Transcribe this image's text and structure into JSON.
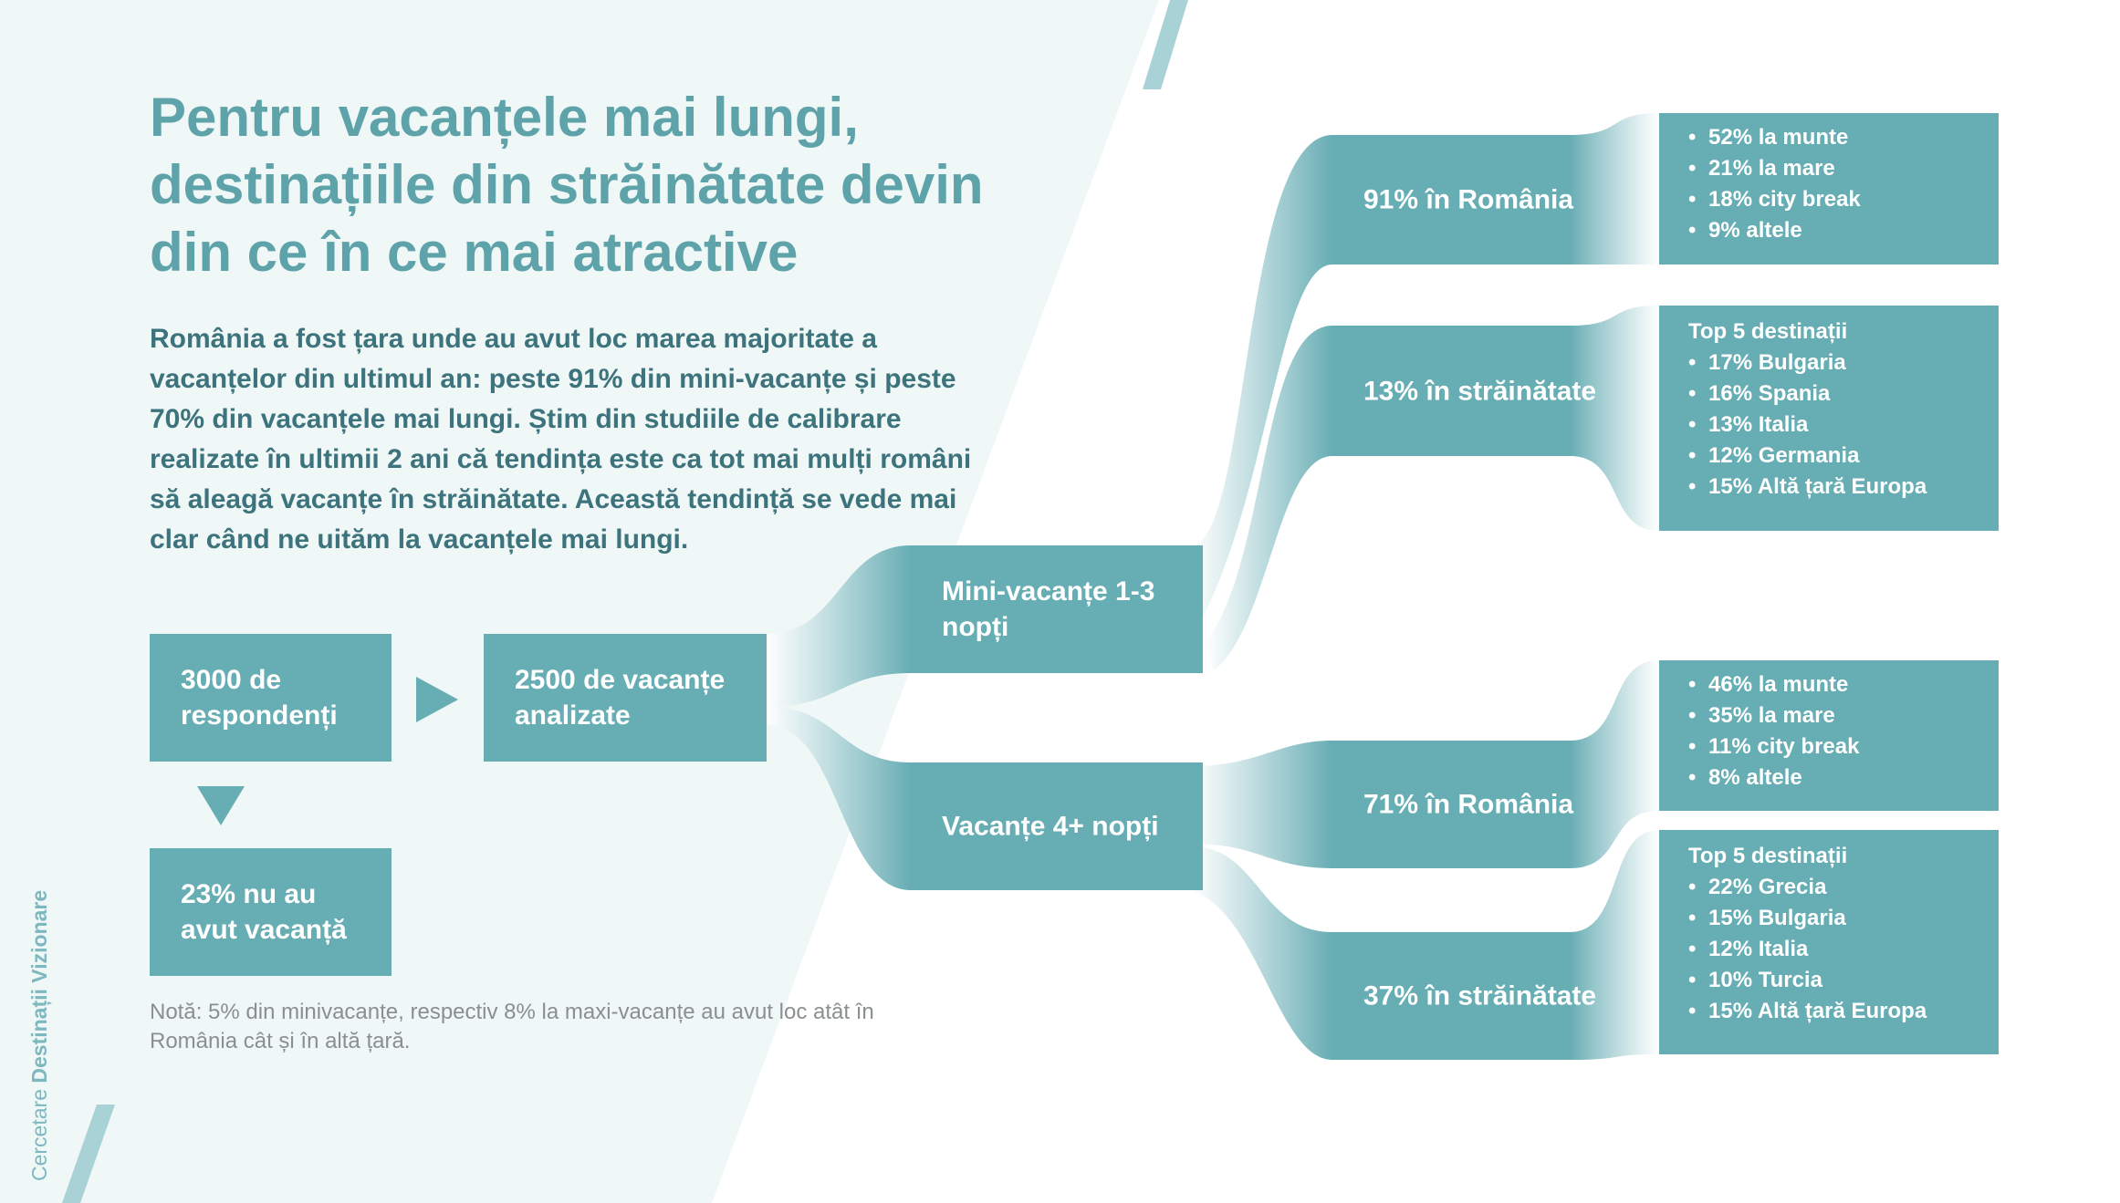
{
  "title_lines": [
    "Pentru vacanțele mai lungi,",
    "destinațiile din străinătate devin",
    "din ce în ce mai atractive"
  ],
  "intro_lines": [
    "România a fost țara unde au avut loc marea majoritate a",
    "vacanțelor din ultimul an: peste 91% din mini-vacanțe și peste",
    "70% din vacanțele mai lungi. Știm din studiile de calibrare",
    "realizate în ultimii 2 ani că tendința este ca tot mai mulți români",
    "să aleagă vacanțe în străinătate. Această tendință se vede mai",
    "clar când ne uităm la vacanțele mai lungi."
  ],
  "nodes": {
    "respondents": [
      "3000 de",
      "respondenți"
    ],
    "analyzed": [
      "2500 de vacanțe",
      "analizate"
    ],
    "no_vacation": [
      "23% nu au",
      "avut vacanță"
    ],
    "mini": [
      "Mini-vacanțe 1-3",
      "nopți"
    ],
    "long": [
      "Vacanțe 4+ nopți"
    ],
    "mini_ro": "91% în România",
    "mini_abroad": "13% în străinătate",
    "long_ro": "71% în România",
    "long_abroad": "37% în străinătate"
  },
  "details": {
    "mini_ro": [
      "52% la munte",
      "21% la mare",
      "18% city break",
      "9% altele"
    ],
    "mini_abroad_header": "Top 5 destinații",
    "mini_abroad": [
      "17% Bulgaria",
      "16% Spania",
      "13% Italia",
      "12% Germania",
      "15% Altă țară Europa"
    ],
    "long_ro": [
      "46% la munte",
      "35% la mare",
      "11% city break",
      "8% altele"
    ],
    "long_abroad_header": "Top 5 destinații",
    "long_abroad": [
      "22% Grecia",
      "15% Bulgaria",
      "12% Italia",
      "10% Turcia",
      "15% Altă țară Europa"
    ]
  },
  "note_lines": [
    "Notă: 5% din minivacanțe, respectiv 8% la maxi-vacanțe au avut loc atât în",
    "România cât și în altă țară."
  ],
  "brand": {
    "prefix": "Cercetare ",
    "name": "Destinații Vizionare"
  },
  "colors": {
    "teal": "#67adb4",
    "title": "#5fa3aa",
    "text": "#3c737c",
    "panel": "#eff7f7"
  }
}
